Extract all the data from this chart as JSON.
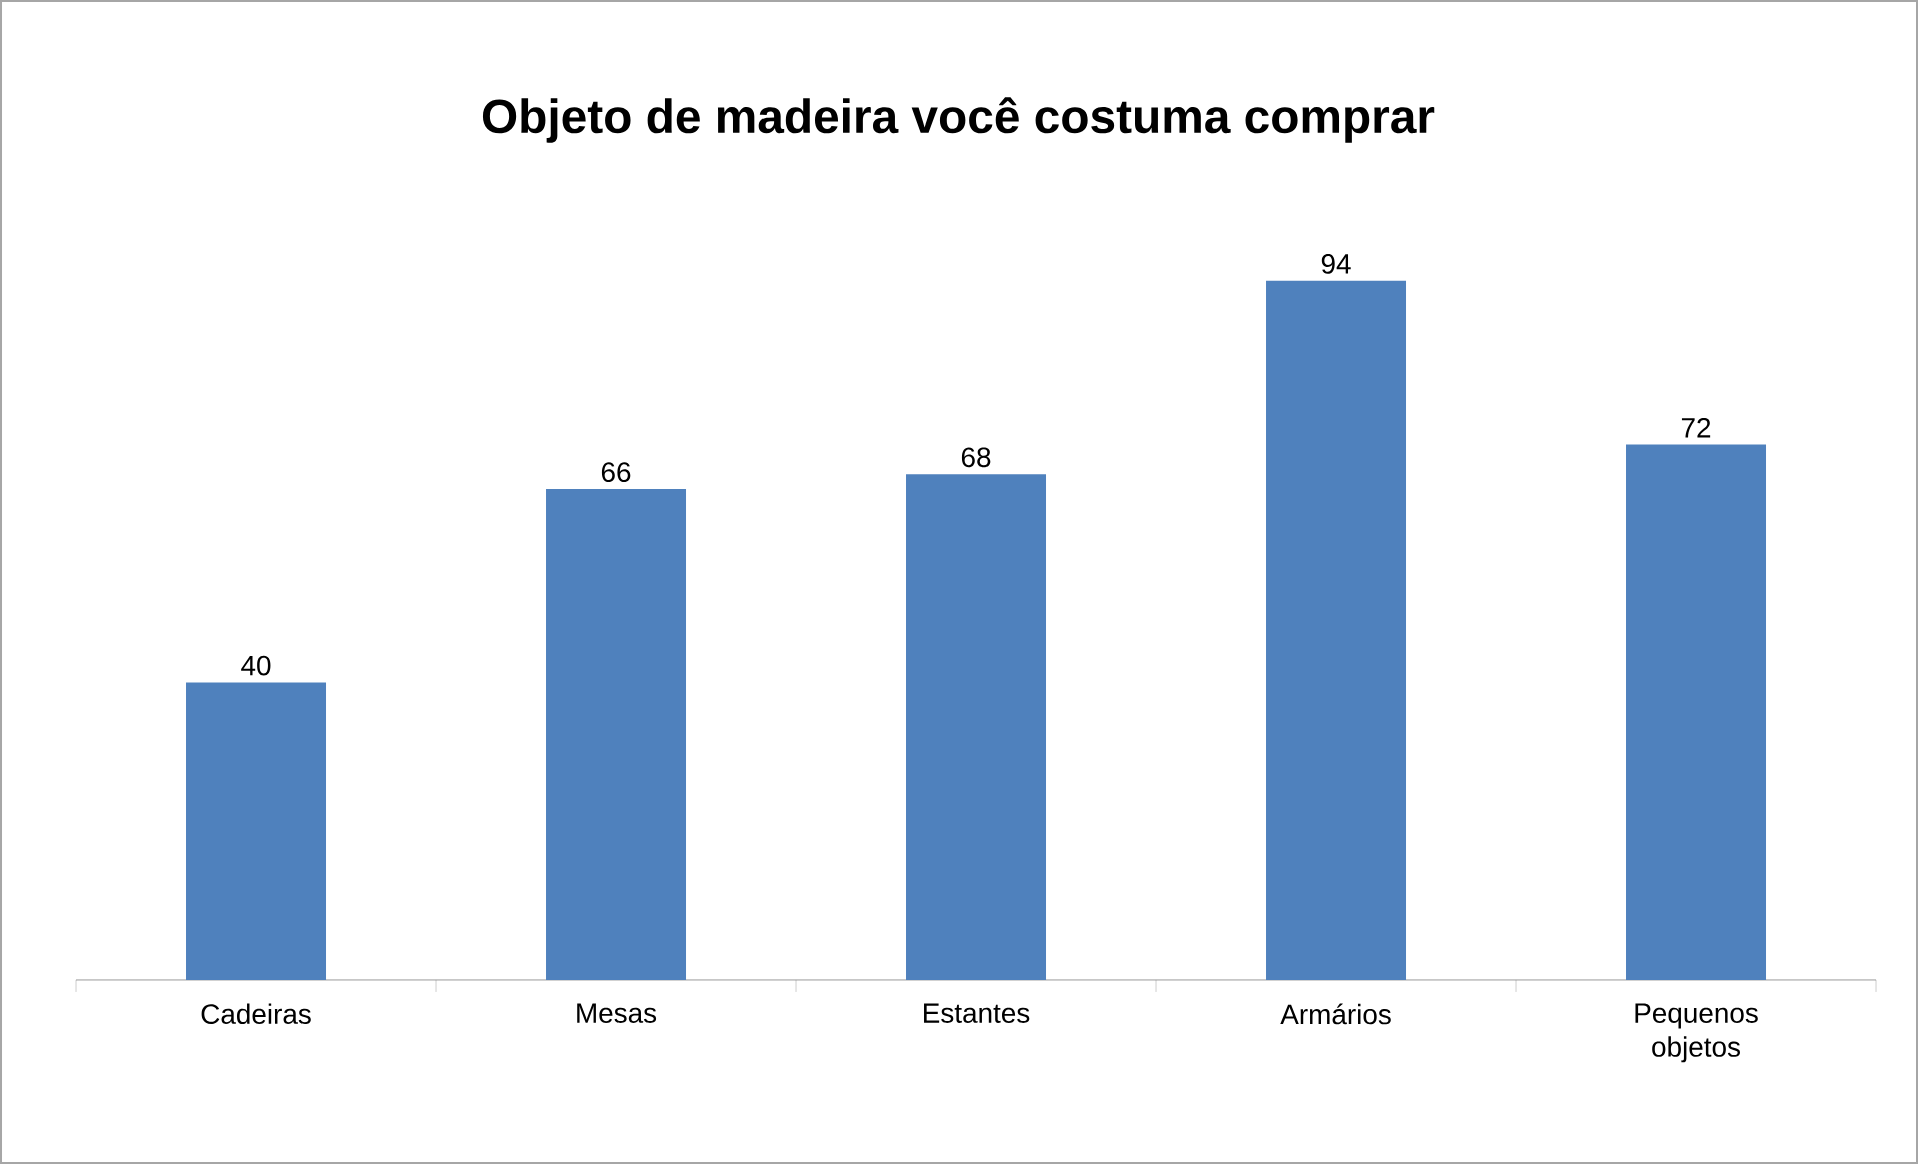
{
  "chart_data": {
    "type": "bar",
    "title": "Objeto de madeira você costuma comprar",
    "categories": [
      "Cadeiras",
      "Mesas",
      "Estantes",
      "Armários",
      "Pequenos objetos"
    ],
    "values": [
      40,
      66,
      68,
      94,
      72
    ],
    "color": "#4f81bd",
    "data_labels": true
  }
}
